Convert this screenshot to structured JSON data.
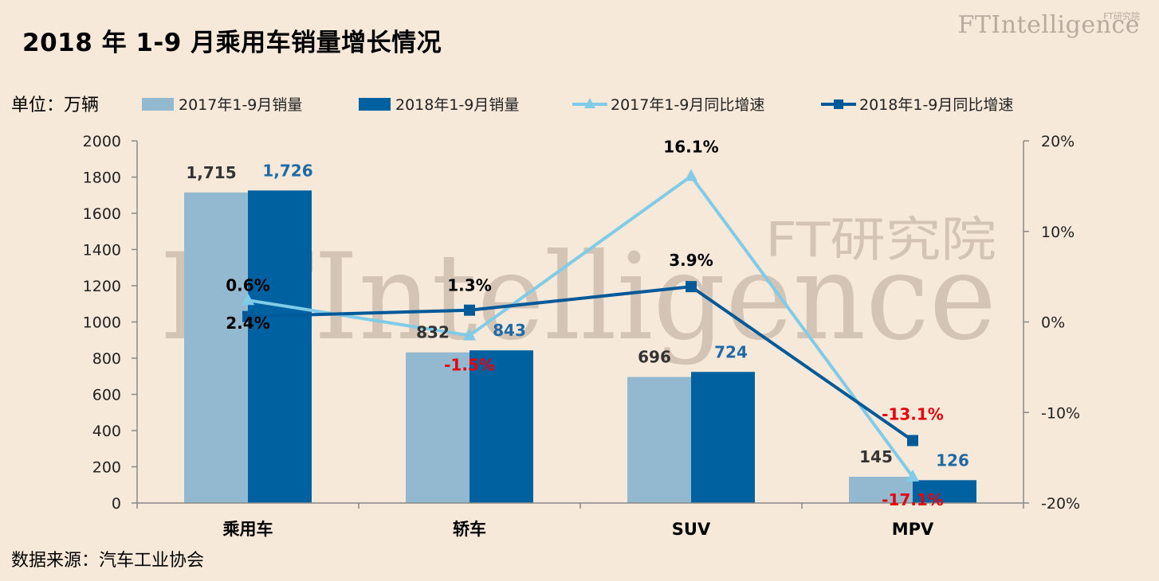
{
  "title": "2018 年 1-9 月乘用车销量增长情况",
  "unit_label": "单位：万辆",
  "source_label": "数据来源：汽车工业协会",
  "brand": {
    "main": "FTIntelligence",
    "sub": "FT研究院"
  },
  "watermark": {
    "main": "FTIntelligence",
    "sub": "FT研究院"
  },
  "colors": {
    "bar2017": "#93b9d0",
    "bar2018": "#0061a1",
    "line2017": "#7fcbe8",
    "line2018": "#005998",
    "negative": "#e8000b",
    "label2018": "#1f6aa5",
    "background": "#f7e9d9"
  },
  "chart_data": {
    "type": "bar",
    "categories": [
      "乘用车",
      "轿车",
      "SUV",
      "MPV"
    ],
    "ylim": [
      0,
      2000
    ],
    "yticks": [
      "0",
      "200",
      "400",
      "600",
      "800",
      "1000",
      "1200",
      "1400",
      "1600",
      "1800",
      "2000"
    ],
    "y2lim": [
      -20,
      20
    ],
    "y2ticks": [
      "-20%",
      "-10%",
      "0%",
      "10%",
      "20%"
    ],
    "legend_position": "top",
    "series": [
      {
        "name": "2017年1-9月销量",
        "type": "bar",
        "values": [
          1715,
          832,
          696,
          145
        ],
        "labels": [
          "1,715",
          "832",
          "696",
          "145"
        ]
      },
      {
        "name": "2018年1-9月销量",
        "type": "bar",
        "values": [
          1726,
          843,
          724,
          126
        ],
        "labels": [
          "1,726",
          "843",
          "724",
          "126"
        ]
      },
      {
        "name": "2017年1-9月同比增速",
        "type": "line",
        "axis": "right",
        "values": [
          2.4,
          -1.5,
          16.1,
          -17.1
        ],
        "labels": [
          "2.4%",
          "-1.5%",
          "16.1%",
          "-17.1%"
        ]
      },
      {
        "name": "2018年1-9月同比增速",
        "type": "line",
        "axis": "right",
        "values": [
          0.6,
          1.3,
          3.9,
          -13.1
        ],
        "labels": [
          "0.6%",
          "1.3%",
          "3.9%",
          "-13.1%"
        ]
      }
    ]
  }
}
